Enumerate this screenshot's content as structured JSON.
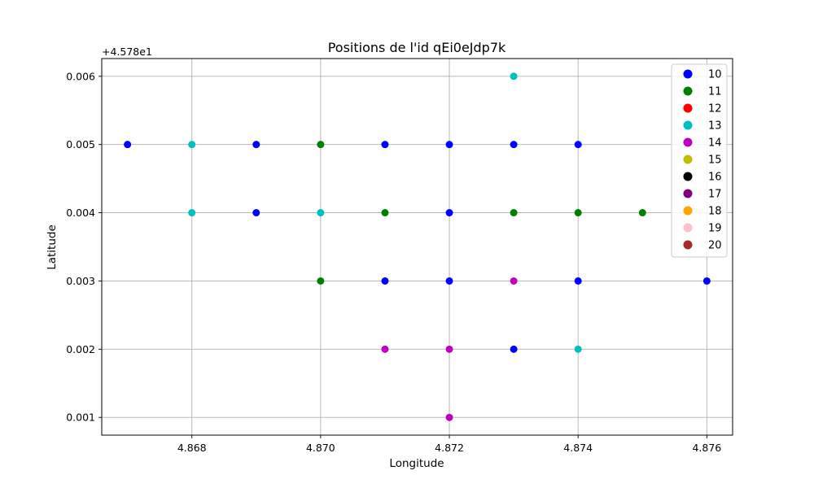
{
  "chart_data": {
    "type": "scatter",
    "title": "Positions de l'id qEi0eJdp7k",
    "xlabel": "Longitude",
    "ylabel": "Latitude",
    "offset_text": "+4.578e1",
    "xlim": [
      4.8666,
      4.8764
    ],
    "ylim": [
      0.00074,
      0.00626
    ],
    "xticks": [
      4.868,
      4.87,
      4.872,
      4.874,
      4.876
    ],
    "xtick_labels": [
      "4.868",
      "4.870",
      "4.872",
      "4.874",
      "4.876"
    ],
    "yticks": [
      0.001,
      0.002,
      0.003,
      0.004,
      0.005,
      0.006
    ],
    "ytick_labels": [
      "0.001",
      "0.002",
      "0.003",
      "0.004",
      "0.005",
      "0.006"
    ],
    "grid": true,
    "legend_position": "upper right",
    "series": [
      {
        "name": "10",
        "color": "#0000ff",
        "points": [
          [
            4.867,
            0.005
          ],
          [
            4.869,
            0.005
          ],
          [
            4.869,
            0.004
          ],
          [
            4.871,
            0.005
          ],
          [
            4.871,
            0.003
          ],
          [
            4.872,
            0.005
          ],
          [
            4.872,
            0.004
          ],
          [
            4.872,
            0.003
          ],
          [
            4.873,
            0.005
          ],
          [
            4.873,
            0.002
          ],
          [
            4.874,
            0.005
          ],
          [
            4.874,
            0.003
          ],
          [
            4.876,
            0.003
          ]
        ]
      },
      {
        "name": "11",
        "color": "#008000",
        "points": [
          [
            4.87,
            0.005
          ],
          [
            4.87,
            0.003
          ],
          [
            4.871,
            0.004
          ],
          [
            4.873,
            0.004
          ],
          [
            4.874,
            0.004
          ],
          [
            4.875,
            0.004
          ]
        ]
      },
      {
        "name": "12",
        "color": "#ff0000",
        "points": []
      },
      {
        "name": "13",
        "color": "#00bfbf",
        "points": [
          [
            4.868,
            0.005
          ],
          [
            4.868,
            0.004
          ],
          [
            4.87,
            0.004
          ],
          [
            4.873,
            0.006
          ],
          [
            4.874,
            0.002
          ]
        ]
      },
      {
        "name": "14",
        "color": "#bf00bf",
        "points": [
          [
            4.871,
            0.002
          ],
          [
            4.872,
            0.002
          ],
          [
            4.872,
            0.001
          ],
          [
            4.873,
            0.003
          ]
        ]
      },
      {
        "name": "15",
        "color": "#bfbf00",
        "points": []
      },
      {
        "name": "16",
        "color": "#000000",
        "points": []
      },
      {
        "name": "17",
        "color": "#800080",
        "points": []
      },
      {
        "name": "18",
        "color": "#ffa500",
        "points": []
      },
      {
        "name": "19",
        "color": "#ffc0cb",
        "points": []
      },
      {
        "name": "20",
        "color": "#a52a2a",
        "points": []
      }
    ]
  }
}
